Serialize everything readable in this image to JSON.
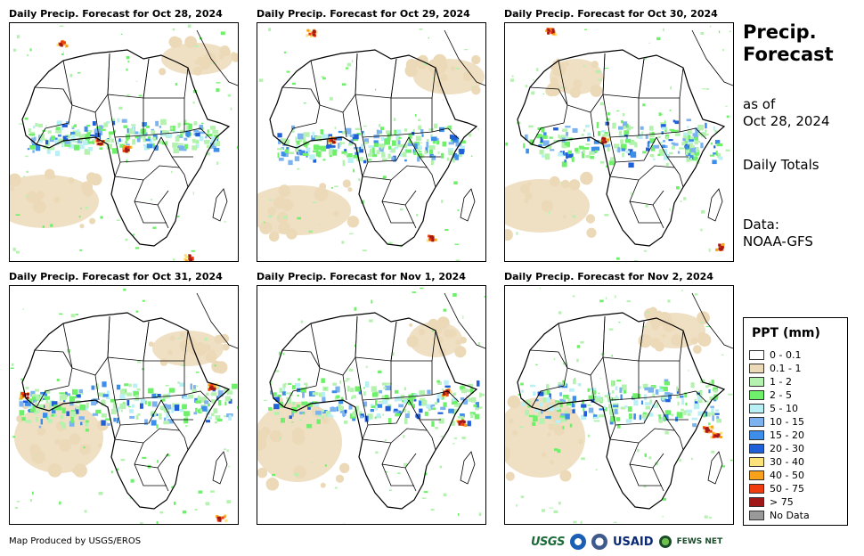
{
  "panels": [
    {
      "title": "Daily Precip. Forecast for Oct 28, 2024"
    },
    {
      "title": "Daily Precip. Forecast for Oct 29, 2024"
    },
    {
      "title": "Daily Precip. Forecast for Oct 30, 2024"
    },
    {
      "title": "Daily Precip. Forecast for Oct 31, 2024"
    },
    {
      "title": "Daily Precip. Forecast for Nov 1, 2024"
    },
    {
      "title": "Daily Precip. Forecast for Nov 2, 2024"
    }
  ],
  "side": {
    "title_line1": "Precip.",
    "title_line2": "Forecast",
    "asof_line1": "as of",
    "asof_line2": "Oct 28, 2024",
    "totals": "Daily Totals",
    "data_line1": "Data:",
    "data_line2": "NOAA-GFS"
  },
  "legend": {
    "title": "PPT (mm)",
    "items": [
      {
        "label": "0 - 0.1",
        "color": "#ffffff"
      },
      {
        "label": "0.1 - 1",
        "color": "#ecd9b8"
      },
      {
        "label": "1 - 2",
        "color": "#b5f2b0"
      },
      {
        "label": "2 - 5",
        "color": "#6ff06a"
      },
      {
        "label": "5 - 10",
        "color": "#b8f0f5"
      },
      {
        "label": "10 - 15",
        "color": "#7cb3ef"
      },
      {
        "label": "15 - 20",
        "color": "#3d8ee8"
      },
      {
        "label": "20 - 30",
        "color": "#1f5fd8"
      },
      {
        "label": "30 - 40",
        "color": "#fbe27a"
      },
      {
        "label": "40 - 50",
        "color": "#f7a21a"
      },
      {
        "label": "50 - 75",
        "color": "#f03d10"
      },
      {
        "label": "> 75",
        "color": "#a01818"
      },
      {
        "label": "No Data",
        "color": "#999999"
      }
    ]
  },
  "footer": {
    "credit": "Map Produced by USGS/EROS"
  },
  "logos": {
    "usgs": "USGS",
    "usaid": "USAID",
    "fews": "FEWS NET"
  }
}
